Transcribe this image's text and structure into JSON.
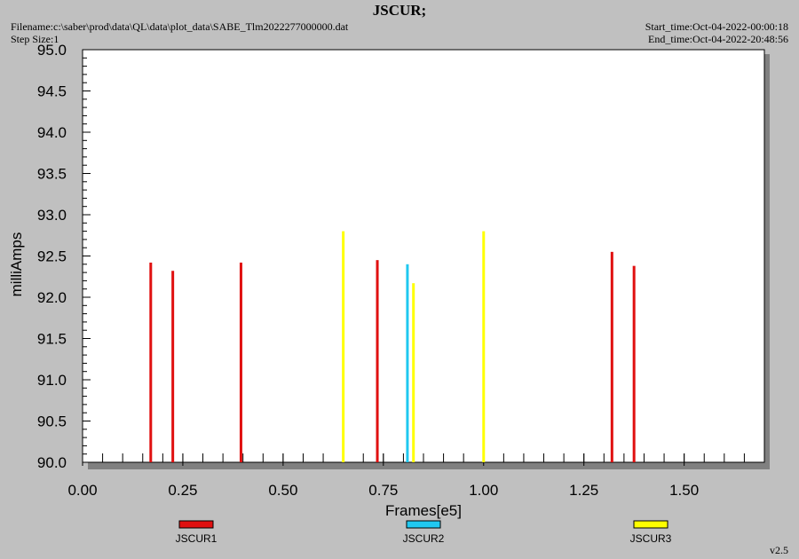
{
  "header": {
    "title": "JSCUR;",
    "filename": "Filename:c:\\saber\\prod\\data\\QL\\data\\plot_data\\SABE_Tlm2022277000000.dat",
    "step_size": "Step Size:1",
    "start_time": "Start_time:Oct-04-2022-00:00:18",
    "end_time": "End_time:Oct-04-2022-20:48:56"
  },
  "version": "v2.5",
  "colors": {
    "background": "#c0c0c0",
    "plot_area": "#ffffff",
    "JSCUR1": "#e01010",
    "JSCUR2": "#20c8f0",
    "JSCUR3": "#ffff00"
  },
  "chart_data": {
    "type": "bar",
    "title": "JSCUR;",
    "xlabel": "Frames[e5]",
    "ylabel": "milliAmps",
    "xlim": [
      0,
      1.7
    ],
    "ylim": [
      90.0,
      95.0
    ],
    "x_ticks": [
      "0.00",
      "0.25",
      "0.50",
      "0.75",
      "1.00",
      "1.25",
      "1.50"
    ],
    "y_ticks": [
      "90.0",
      "90.5",
      "91.0",
      "91.5",
      "92.0",
      "92.5",
      "93.0",
      "93.5",
      "94.0",
      "94.5",
      "95.0"
    ],
    "series": [
      {
        "name": "JSCUR1",
        "color": "#e01010",
        "points": [
          [
            0.17,
            92.42
          ],
          [
            0.225,
            92.32
          ],
          [
            0.395,
            92.42
          ],
          [
            0.735,
            92.45
          ],
          [
            1.32,
            92.55
          ],
          [
            1.375,
            92.38
          ]
        ]
      },
      {
        "name": "JSCUR2",
        "color": "#20c8f0",
        "points": [
          [
            0.81,
            92.4
          ]
        ]
      },
      {
        "name": "JSCUR3",
        "color": "#ffff00",
        "points": [
          [
            0.65,
            92.8
          ],
          [
            0.825,
            92.17
          ],
          [
            1.0,
            92.8
          ]
        ]
      }
    ],
    "legend_position": "bottom"
  }
}
